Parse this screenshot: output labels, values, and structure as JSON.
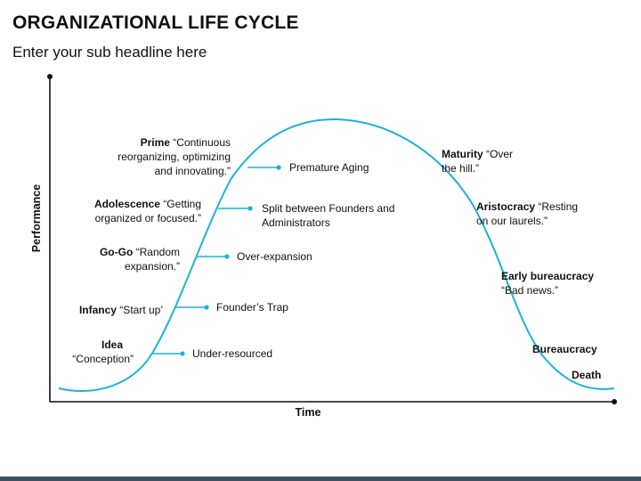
{
  "title": "ORGANIZATIONAL LIFE CYCLE",
  "subtitle": "Enter your sub headline here",
  "axes": {
    "y_label": "Performance",
    "x_label": "Time"
  },
  "colors": {
    "curve": "#1bb3d9",
    "axis": "#111111",
    "bottom_bar": "#3f4f60",
    "text": "#111111"
  },
  "rising_stages": [
    {
      "name": "Prime",
      "desc_lines": [
        "“Continuous",
        "reorganizing, optimizing",
        "and innovating.”"
      ],
      "trap": [
        "Premature Aging"
      ]
    },
    {
      "name": "Adolescence",
      "desc_lines": [
        "“Getting",
        "organized or focused.”"
      ],
      "trap": [
        "Split between Founders and",
        "Administrators"
      ]
    },
    {
      "name": "Go-Go",
      "desc_lines": [
        "“Random",
        "expansion.”"
      ],
      "trap": [
        "Over-expansion"
      ]
    },
    {
      "name": "Infancy",
      "desc_lines": [
        "“Start up’"
      ],
      "trap": [
        "Founder’s Trap"
      ]
    },
    {
      "name": "Idea",
      "desc_lines": [
        "“Conception”"
      ],
      "trap": [
        "Under-resourced"
      ]
    }
  ],
  "declining_stages": [
    {
      "name": "Maturity",
      "desc_lines": [
        "“Over",
        "the hill.”"
      ]
    },
    {
      "name": "Aristocracy",
      "desc_lines": [
        "“Resting",
        "on our laurels.”"
      ]
    },
    {
      "name": "Early bureaucracy",
      "desc_lines": [
        "“Bad news.”"
      ]
    },
    {
      "name": "Bureaucracy",
      "desc_lines": []
    },
    {
      "name": "Death",
      "desc_lines": []
    }
  ]
}
